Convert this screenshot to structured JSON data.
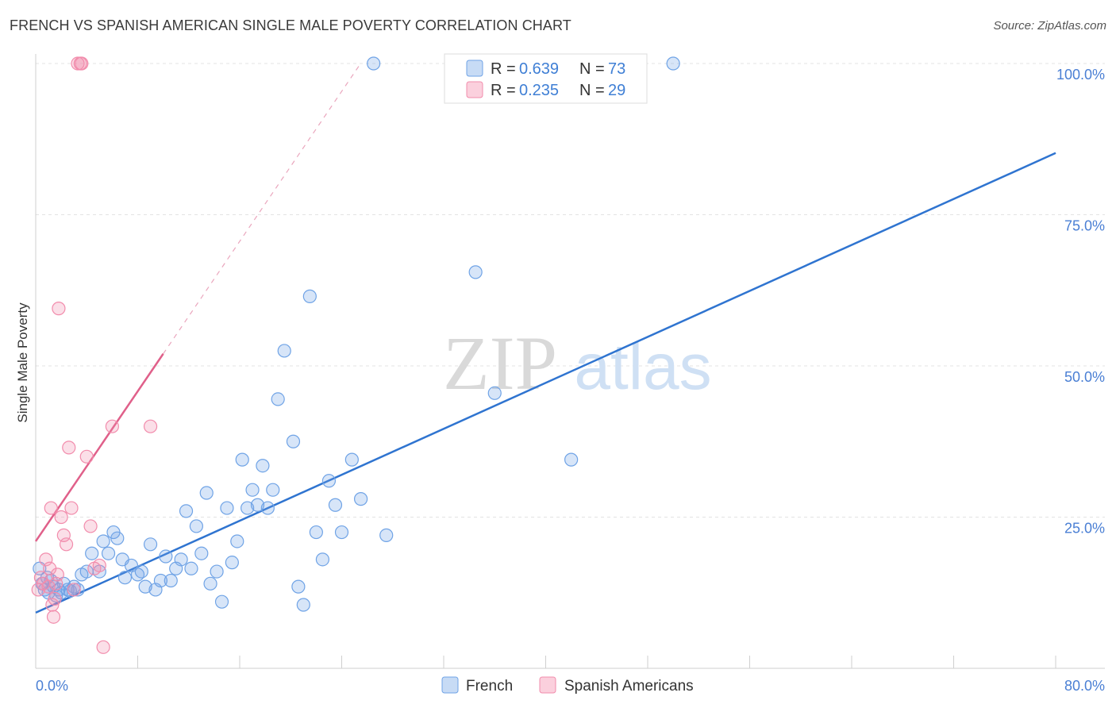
{
  "header": {
    "title": "FRENCH VS SPANISH AMERICAN SINGLE MALE POVERTY CORRELATION CHART",
    "source": "Source: ZipAtlas.com"
  },
  "watermark": {
    "zip": "ZIP",
    "atlas": "atlas"
  },
  "legend_box": {
    "rows": [
      {
        "r_label": "R = ",
        "r_value": "0.639",
        "n_label": "N = ",
        "n_value": "73",
        "color": "#6fa3e6"
      },
      {
        "r_label": "R = ",
        "r_value": "0.235",
        "n_label": "N = ",
        "n_value": "29",
        "color": "#f28cac"
      }
    ]
  },
  "chart_data": {
    "type": "scatter",
    "title": "FRENCH VS SPANISH AMERICAN SINGLE MALE POVERTY CORRELATION CHART",
    "xlabel": "",
    "ylabel": "Single Male Poverty",
    "xlim": [
      0,
      80
    ],
    "ylim": [
      0,
      100
    ],
    "x_tick_labels": [
      "0.0%",
      "80.0%"
    ],
    "y_ticks": [
      25,
      50,
      75,
      100
    ],
    "y_tick_labels": [
      "25.0%",
      "50.0%",
      "75.0%",
      "100.0%"
    ],
    "grid": true,
    "legend": "bottom-center",
    "colors": {
      "french": "#6fa3e6",
      "french_line": "#2f74d0",
      "spanish": "#f28cac",
      "spanish_line": "#e0608a",
      "axis_text": "#4a7fd4"
    },
    "series": [
      {
        "name": "French",
        "regression": {
          "slope": 0.95,
          "intercept": 9.2,
          "x_range": [
            0,
            80
          ]
        },
        "points": [
          [
            0.3,
            16.5
          ],
          [
            0.5,
            14.0
          ],
          [
            0.7,
            13.0
          ],
          [
            0.9,
            15.0
          ],
          [
            1.0,
            12.5
          ],
          [
            1.2,
            14.5
          ],
          [
            1.4,
            13.5
          ],
          [
            1.6,
            12.0
          ],
          [
            1.8,
            13.0
          ],
          [
            2.0,
            12.5
          ],
          [
            2.2,
            14.0
          ],
          [
            2.5,
            13.0
          ],
          [
            2.7,
            12.8
          ],
          [
            3.0,
            13.5
          ],
          [
            3.3,
            13.0
          ],
          [
            3.6,
            15.5
          ],
          [
            4.0,
            16.0
          ],
          [
            4.4,
            19.0
          ],
          [
            5.0,
            16.0
          ],
          [
            5.3,
            21.0
          ],
          [
            5.7,
            19.0
          ],
          [
            6.1,
            22.5
          ],
          [
            6.4,
            21.5
          ],
          [
            6.8,
            18.0
          ],
          [
            7.0,
            15.0
          ],
          [
            7.5,
            17.0
          ],
          [
            8.0,
            15.5
          ],
          [
            8.3,
            16.0
          ],
          [
            8.6,
            13.5
          ],
          [
            9.0,
            20.5
          ],
          [
            9.4,
            13.0
          ],
          [
            9.8,
            14.5
          ],
          [
            10.2,
            18.5
          ],
          [
            10.6,
            14.5
          ],
          [
            11.0,
            16.5
          ],
          [
            11.4,
            18.0
          ],
          [
            11.8,
            26.0
          ],
          [
            12.2,
            16.5
          ],
          [
            12.6,
            23.5
          ],
          [
            13.0,
            19.0
          ],
          [
            13.4,
            29.0
          ],
          [
            13.7,
            14.0
          ],
          [
            14.2,
            16.0
          ],
          [
            14.6,
            11.0
          ],
          [
            15.0,
            26.5
          ],
          [
            15.4,
            17.5
          ],
          [
            15.8,
            21.0
          ],
          [
            16.2,
            34.5
          ],
          [
            16.6,
            26.5
          ],
          [
            17.0,
            29.5
          ],
          [
            17.4,
            27.0
          ],
          [
            17.8,
            33.5
          ],
          [
            18.2,
            26.5
          ],
          [
            18.6,
            29.5
          ],
          [
            19.0,
            44.5
          ],
          [
            19.5,
            52.5
          ],
          [
            20.2,
            37.5
          ],
          [
            20.6,
            13.5
          ],
          [
            21.0,
            10.5
          ],
          [
            21.5,
            61.5
          ],
          [
            22.0,
            22.5
          ],
          [
            22.5,
            18.0
          ],
          [
            23.0,
            31.0
          ],
          [
            23.5,
            27.0
          ],
          [
            24.0,
            22.5
          ],
          [
            24.8,
            34.5
          ],
          [
            25.5,
            28.0
          ],
          [
            26.5,
            100.0
          ],
          [
            27.5,
            22.0
          ],
          [
            34.5,
            65.5
          ],
          [
            36.0,
            45.5
          ],
          [
            42.0,
            34.5
          ],
          [
            50.0,
            100.0
          ]
        ]
      },
      {
        "name": "Spanish Americans",
        "regression": {
          "slope": 3.1,
          "intercept": 21.0,
          "x_range": [
            0,
            25
          ]
        },
        "points": [
          [
            0.2,
            13.0
          ],
          [
            0.4,
            15.0
          ],
          [
            0.6,
            14.0
          ],
          [
            0.8,
            18.0
          ],
          [
            1.0,
            13.5
          ],
          [
            1.1,
            16.5
          ],
          [
            1.2,
            26.5
          ],
          [
            1.3,
            10.5
          ],
          [
            1.4,
            8.5
          ],
          [
            1.5,
            11.5
          ],
          [
            1.6,
            14.0
          ],
          [
            1.7,
            15.5
          ],
          [
            1.8,
            59.5
          ],
          [
            2.0,
            25.0
          ],
          [
            2.2,
            22.0
          ],
          [
            2.4,
            20.5
          ],
          [
            2.6,
            36.5
          ],
          [
            2.8,
            26.5
          ],
          [
            3.0,
            13.0
          ],
          [
            3.3,
            100.0
          ],
          [
            3.5,
            100.0
          ],
          [
            3.6,
            100.0
          ],
          [
            4.0,
            35.0
          ],
          [
            4.3,
            23.5
          ],
          [
            4.6,
            16.5
          ],
          [
            5.0,
            17.0
          ],
          [
            5.3,
            3.5
          ],
          [
            6.0,
            40.0
          ],
          [
            9.0,
            40.0
          ]
        ]
      }
    ]
  }
}
